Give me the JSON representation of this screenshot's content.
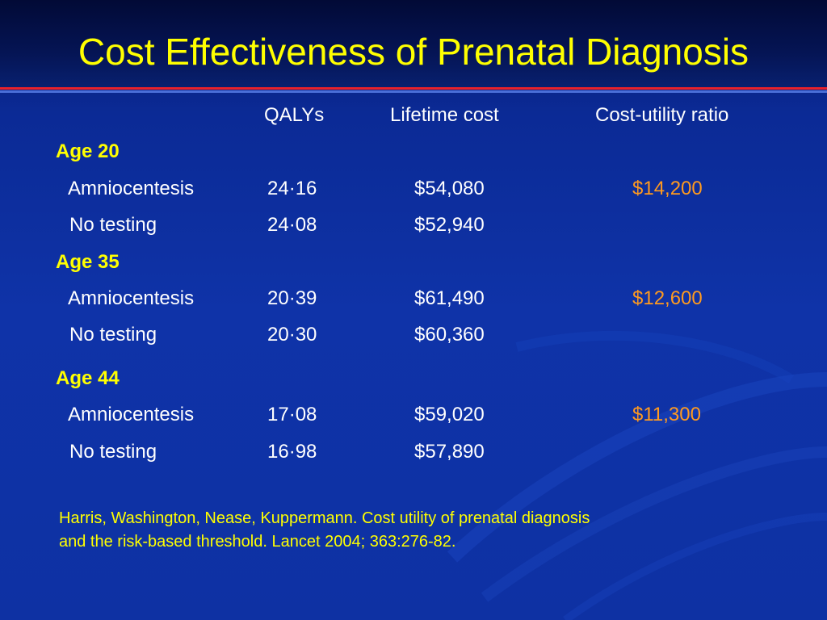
{
  "slide": {
    "title": "Cost Effectiveness of Prenatal Diagnosis",
    "colors": {
      "background": "#0f33a8",
      "title": "#ffff00",
      "ratio": "#ff9a1f",
      "rule": "#e8212a"
    }
  },
  "table": {
    "headers": [
      "QALYs",
      "Lifetime cost",
      "Cost-utility ratio"
    ],
    "groups": [
      {
        "label": "Age 20",
        "rows": [
          {
            "label": "Amniocentesis",
            "qalys": "24·16",
            "cost": "$54,080",
            "ratio": "$14,200"
          },
          {
            "label": "No testing",
            "qalys": "24·08",
            "cost": "$52,940",
            "ratio": ""
          }
        ]
      },
      {
        "label": "Age 35",
        "rows": [
          {
            "label": "Amniocentesis",
            "qalys": "20·39",
            "cost": "$61,490",
            "ratio": "$12,600"
          },
          {
            "label": "No testing",
            "qalys": "20·30",
            "cost": "$60,360",
            "ratio": ""
          }
        ]
      },
      {
        "label": "Age 44",
        "rows": [
          {
            "label": "Amniocentesis",
            "qalys": "17·08",
            "cost": "$59,020",
            "ratio": "$11,300"
          },
          {
            "label": "No testing",
            "qalys": "16·98",
            "cost": "$57,890",
            "ratio": ""
          }
        ]
      }
    ]
  },
  "citation": {
    "line1": "Harris, Washington, Nease, Kuppermann. Cost utility of prenatal diagnosis",
    "line2": "and the risk-based threshold. Lancet 2004; 363:276-82."
  }
}
